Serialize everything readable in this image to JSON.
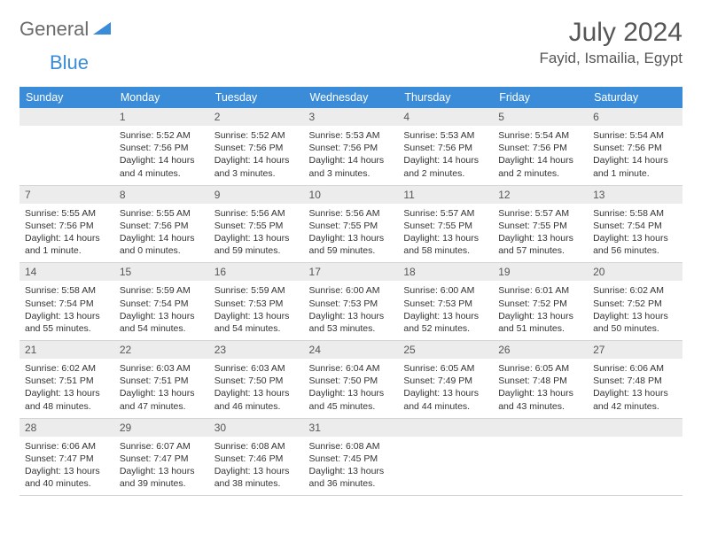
{
  "logo": {
    "part1": "General",
    "part2": "Blue"
  },
  "header": {
    "title": "July 2024",
    "location": "Fayid, Ismailia, Egypt"
  },
  "colors": {
    "header_bg": "#3a8bd8",
    "header_text": "#ffffff",
    "daynum_bg": "#ececec",
    "border": "#d5d5d5",
    "logo_gray": "#6b6b6b",
    "logo_blue": "#3a8bd8",
    "title_color": "#565656"
  },
  "weekdays": [
    "Sunday",
    "Monday",
    "Tuesday",
    "Wednesday",
    "Thursday",
    "Friday",
    "Saturday"
  ],
  "weeks": [
    [
      {
        "day": "",
        "sunrise": "",
        "sunset": "",
        "daylight": ""
      },
      {
        "day": "1",
        "sunrise": "Sunrise: 5:52 AM",
        "sunset": "Sunset: 7:56 PM",
        "daylight": "Daylight: 14 hours and 4 minutes."
      },
      {
        "day": "2",
        "sunrise": "Sunrise: 5:52 AM",
        "sunset": "Sunset: 7:56 PM",
        "daylight": "Daylight: 14 hours and 3 minutes."
      },
      {
        "day": "3",
        "sunrise": "Sunrise: 5:53 AM",
        "sunset": "Sunset: 7:56 PM",
        "daylight": "Daylight: 14 hours and 3 minutes."
      },
      {
        "day": "4",
        "sunrise": "Sunrise: 5:53 AM",
        "sunset": "Sunset: 7:56 PM",
        "daylight": "Daylight: 14 hours and 2 minutes."
      },
      {
        "day": "5",
        "sunrise": "Sunrise: 5:54 AM",
        "sunset": "Sunset: 7:56 PM",
        "daylight": "Daylight: 14 hours and 2 minutes."
      },
      {
        "day": "6",
        "sunrise": "Sunrise: 5:54 AM",
        "sunset": "Sunset: 7:56 PM",
        "daylight": "Daylight: 14 hours and 1 minute."
      }
    ],
    [
      {
        "day": "7",
        "sunrise": "Sunrise: 5:55 AM",
        "sunset": "Sunset: 7:56 PM",
        "daylight": "Daylight: 14 hours and 1 minute."
      },
      {
        "day": "8",
        "sunrise": "Sunrise: 5:55 AM",
        "sunset": "Sunset: 7:56 PM",
        "daylight": "Daylight: 14 hours and 0 minutes."
      },
      {
        "day": "9",
        "sunrise": "Sunrise: 5:56 AM",
        "sunset": "Sunset: 7:55 PM",
        "daylight": "Daylight: 13 hours and 59 minutes."
      },
      {
        "day": "10",
        "sunrise": "Sunrise: 5:56 AM",
        "sunset": "Sunset: 7:55 PM",
        "daylight": "Daylight: 13 hours and 59 minutes."
      },
      {
        "day": "11",
        "sunrise": "Sunrise: 5:57 AM",
        "sunset": "Sunset: 7:55 PM",
        "daylight": "Daylight: 13 hours and 58 minutes."
      },
      {
        "day": "12",
        "sunrise": "Sunrise: 5:57 AM",
        "sunset": "Sunset: 7:55 PM",
        "daylight": "Daylight: 13 hours and 57 minutes."
      },
      {
        "day": "13",
        "sunrise": "Sunrise: 5:58 AM",
        "sunset": "Sunset: 7:54 PM",
        "daylight": "Daylight: 13 hours and 56 minutes."
      }
    ],
    [
      {
        "day": "14",
        "sunrise": "Sunrise: 5:58 AM",
        "sunset": "Sunset: 7:54 PM",
        "daylight": "Daylight: 13 hours and 55 minutes."
      },
      {
        "day": "15",
        "sunrise": "Sunrise: 5:59 AM",
        "sunset": "Sunset: 7:54 PM",
        "daylight": "Daylight: 13 hours and 54 minutes."
      },
      {
        "day": "16",
        "sunrise": "Sunrise: 5:59 AM",
        "sunset": "Sunset: 7:53 PM",
        "daylight": "Daylight: 13 hours and 54 minutes."
      },
      {
        "day": "17",
        "sunrise": "Sunrise: 6:00 AM",
        "sunset": "Sunset: 7:53 PM",
        "daylight": "Daylight: 13 hours and 53 minutes."
      },
      {
        "day": "18",
        "sunrise": "Sunrise: 6:00 AM",
        "sunset": "Sunset: 7:53 PM",
        "daylight": "Daylight: 13 hours and 52 minutes."
      },
      {
        "day": "19",
        "sunrise": "Sunrise: 6:01 AM",
        "sunset": "Sunset: 7:52 PM",
        "daylight": "Daylight: 13 hours and 51 minutes."
      },
      {
        "day": "20",
        "sunrise": "Sunrise: 6:02 AM",
        "sunset": "Sunset: 7:52 PM",
        "daylight": "Daylight: 13 hours and 50 minutes."
      }
    ],
    [
      {
        "day": "21",
        "sunrise": "Sunrise: 6:02 AM",
        "sunset": "Sunset: 7:51 PM",
        "daylight": "Daylight: 13 hours and 48 minutes."
      },
      {
        "day": "22",
        "sunrise": "Sunrise: 6:03 AM",
        "sunset": "Sunset: 7:51 PM",
        "daylight": "Daylight: 13 hours and 47 minutes."
      },
      {
        "day": "23",
        "sunrise": "Sunrise: 6:03 AM",
        "sunset": "Sunset: 7:50 PM",
        "daylight": "Daylight: 13 hours and 46 minutes."
      },
      {
        "day": "24",
        "sunrise": "Sunrise: 6:04 AM",
        "sunset": "Sunset: 7:50 PM",
        "daylight": "Daylight: 13 hours and 45 minutes."
      },
      {
        "day": "25",
        "sunrise": "Sunrise: 6:05 AM",
        "sunset": "Sunset: 7:49 PM",
        "daylight": "Daylight: 13 hours and 44 minutes."
      },
      {
        "day": "26",
        "sunrise": "Sunrise: 6:05 AM",
        "sunset": "Sunset: 7:48 PM",
        "daylight": "Daylight: 13 hours and 43 minutes."
      },
      {
        "day": "27",
        "sunrise": "Sunrise: 6:06 AM",
        "sunset": "Sunset: 7:48 PM",
        "daylight": "Daylight: 13 hours and 42 minutes."
      }
    ],
    [
      {
        "day": "28",
        "sunrise": "Sunrise: 6:06 AM",
        "sunset": "Sunset: 7:47 PM",
        "daylight": "Daylight: 13 hours and 40 minutes."
      },
      {
        "day": "29",
        "sunrise": "Sunrise: 6:07 AM",
        "sunset": "Sunset: 7:47 PM",
        "daylight": "Daylight: 13 hours and 39 minutes."
      },
      {
        "day": "30",
        "sunrise": "Sunrise: 6:08 AM",
        "sunset": "Sunset: 7:46 PM",
        "daylight": "Daylight: 13 hours and 38 minutes."
      },
      {
        "day": "31",
        "sunrise": "Sunrise: 6:08 AM",
        "sunset": "Sunset: 7:45 PM",
        "daylight": "Daylight: 13 hours and 36 minutes."
      },
      {
        "day": "",
        "sunrise": "",
        "sunset": "",
        "daylight": ""
      },
      {
        "day": "",
        "sunrise": "",
        "sunset": "",
        "daylight": ""
      },
      {
        "day": "",
        "sunrise": "",
        "sunset": "",
        "daylight": ""
      }
    ]
  ]
}
